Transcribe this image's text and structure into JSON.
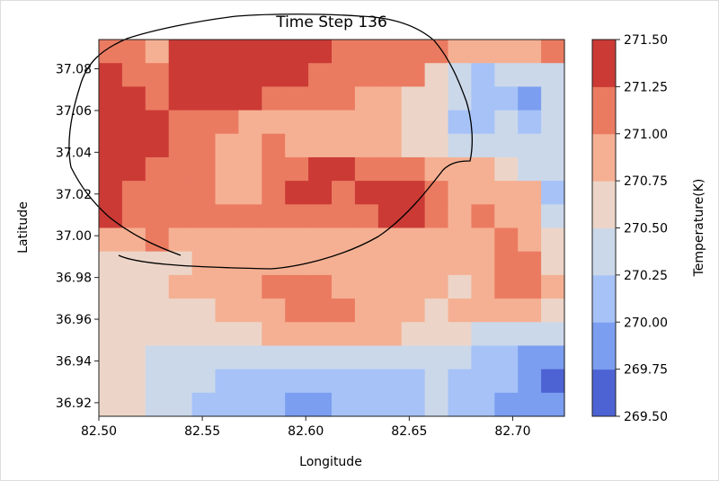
{
  "chart_data": {
    "type": "heatmap",
    "subtype": "filled-contour",
    "title": "Time Step 136",
    "xlabel": "Longitude",
    "ylabel": "Latitude",
    "xlim": [
      82.5,
      82.725
    ],
    "ylim": [
      36.9135,
      37.094
    ],
    "xticks": [
      82.5,
      82.55,
      82.6,
      82.65,
      82.7
    ],
    "xtick_labels": [
      "82.50",
      "82.55",
      "82.60",
      "82.65",
      "82.70"
    ],
    "yticks": [
      36.92,
      36.94,
      36.96,
      36.98,
      37.0,
      37.02,
      37.04,
      37.06,
      37.08
    ],
    "ytick_labels": [
      "36.92",
      "36.94",
      "36.96",
      "36.98",
      "37.00",
      "37.02",
      "37.04",
      "37.06",
      "37.08"
    ],
    "grid": false,
    "colorbar": {
      "label": "Temperature(K)",
      "levels": [
        269.5,
        269.75,
        270.0,
        270.25,
        270.5,
        270.75,
        271.0,
        271.25,
        271.5
      ],
      "tick_labels": [
        "269.50",
        "269.75",
        "270.00",
        "270.25",
        "270.50",
        "270.75",
        "271.00",
        "271.25",
        "271.50"
      ],
      "colors": [
        "#4d63d4",
        "#7b9ef0",
        "#a6c2f7",
        "#cbd8ea",
        "#ecd5c8",
        "#f5b093",
        "#ea7b61",
        "#cb3a35"
      ],
      "placement": "right"
    },
    "grid_note_rows": "z rows ordered from north (top) to south (bottom), columns west to east",
    "z": [
      [
        271.1,
        271.1,
        270.9,
        271.4,
        271.4,
        271.4,
        271.4,
        271.4,
        271.4,
        271.4,
        271.1,
        271.1,
        271.1,
        271.1,
        271.1,
        270.9,
        270.9,
        270.9,
        270.9,
        271.1
      ],
      [
        271.4,
        271.1,
        271.1,
        271.4,
        271.4,
        271.4,
        271.4,
        271.4,
        271.4,
        271.1,
        271.1,
        271.1,
        271.1,
        271.1,
        270.6,
        270.4,
        270.1,
        270.4,
        270.4,
        270.4
      ],
      [
        271.4,
        271.4,
        271.1,
        271.4,
        271.4,
        271.4,
        271.4,
        271.1,
        271.1,
        271.1,
        271.1,
        270.9,
        270.9,
        270.6,
        270.6,
        270.4,
        270.1,
        270.1,
        269.9,
        270.4
      ],
      [
        271.4,
        271.4,
        271.4,
        271.1,
        271.1,
        271.1,
        270.9,
        270.9,
        270.9,
        270.9,
        270.9,
        270.9,
        270.9,
        270.6,
        270.6,
        270.1,
        270.1,
        270.4,
        270.1,
        270.4
      ],
      [
        271.4,
        271.4,
        271.4,
        271.1,
        271.1,
        270.9,
        270.9,
        271.1,
        270.9,
        270.9,
        270.9,
        270.9,
        270.9,
        270.6,
        270.6,
        270.4,
        270.4,
        270.4,
        270.4,
        270.4
      ],
      [
        271.4,
        271.4,
        271.1,
        271.1,
        271.1,
        270.9,
        270.9,
        271.1,
        271.1,
        271.4,
        271.4,
        271.1,
        271.1,
        271.1,
        270.9,
        270.9,
        270.9,
        270.6,
        270.4,
        270.4
      ],
      [
        271.4,
        271.1,
        271.1,
        271.1,
        271.1,
        270.9,
        270.9,
        271.1,
        271.4,
        271.4,
        271.1,
        271.4,
        271.4,
        271.4,
        271.1,
        270.9,
        270.9,
        270.9,
        270.9,
        270.1
      ],
      [
        271.4,
        271.1,
        271.1,
        271.1,
        271.1,
        271.1,
        271.1,
        271.1,
        271.1,
        271.1,
        271.1,
        271.1,
        271.4,
        271.4,
        271.1,
        270.9,
        271.1,
        270.9,
        270.9,
        270.4
      ],
      [
        270.9,
        270.9,
        271.1,
        270.9,
        270.9,
        270.9,
        270.9,
        270.9,
        270.9,
        270.9,
        270.9,
        270.9,
        270.9,
        270.9,
        270.9,
        270.9,
        270.9,
        271.1,
        270.9,
        270.6
      ],
      [
        270.6,
        270.6,
        270.6,
        270.6,
        270.9,
        270.9,
        270.9,
        270.9,
        270.9,
        270.9,
        270.9,
        270.9,
        270.9,
        270.9,
        270.9,
        270.9,
        270.9,
        271.1,
        271.1,
        270.6
      ],
      [
        270.6,
        270.6,
        270.6,
        270.9,
        270.9,
        270.9,
        270.9,
        271.1,
        271.1,
        271.1,
        270.9,
        270.9,
        270.9,
        270.9,
        270.9,
        270.6,
        270.9,
        271.1,
        271.1,
        270.9
      ],
      [
        270.6,
        270.6,
        270.6,
        270.6,
        270.6,
        270.9,
        270.9,
        270.9,
        271.1,
        271.1,
        271.1,
        270.9,
        270.9,
        270.9,
        270.6,
        270.9,
        270.9,
        270.9,
        270.9,
        270.6
      ],
      [
        270.6,
        270.6,
        270.6,
        270.6,
        270.6,
        270.6,
        270.6,
        270.9,
        270.9,
        270.9,
        270.9,
        270.9,
        270.9,
        270.6,
        270.6,
        270.6,
        270.4,
        270.4,
        270.4,
        270.4
      ],
      [
        270.6,
        270.6,
        270.4,
        270.4,
        270.4,
        270.4,
        270.4,
        270.4,
        270.4,
        270.4,
        270.4,
        270.4,
        270.4,
        270.4,
        270.4,
        270.4,
        270.1,
        270.1,
        269.9,
        269.9
      ],
      [
        270.6,
        270.6,
        270.4,
        270.4,
        270.4,
        270.1,
        270.1,
        270.1,
        270.1,
        270.1,
        270.1,
        270.1,
        270.1,
        270.1,
        270.4,
        270.1,
        270.1,
        270.1,
        269.9,
        269.6
      ],
      [
        270.6,
        270.6,
        270.4,
        270.4,
        270.1,
        270.1,
        270.1,
        270.1,
        269.9,
        269.9,
        270.1,
        270.1,
        270.1,
        270.1,
        270.4,
        270.1,
        270.1,
        269.9,
        269.9,
        269.9
      ]
    ]
  }
}
